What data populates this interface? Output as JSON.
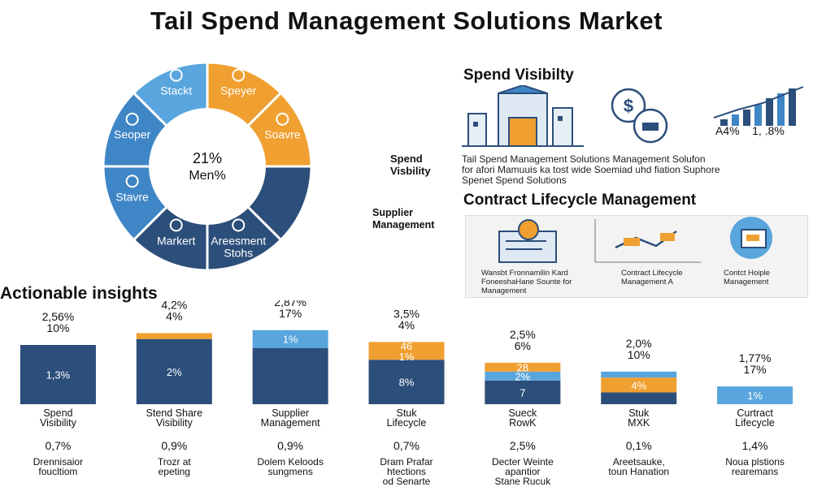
{
  "title": "Tail Spend Management Solutions Market",
  "pie": {
    "segments": [
      {
        "label": "Speyer",
        "color": "#f0a030"
      },
      {
        "label": "Soavre",
        "color": "#f0a030"
      },
      {
        "label": "",
        "color": "#2c4e7a"
      },
      {
        "label": "Areesment\nStohs",
        "color": "#2c4e7a"
      },
      {
        "label": "Markert",
        "color": "#2c4e7a"
      },
      {
        "label": "Stavre",
        "color": "#3f86c6"
      },
      {
        "label": "Seoper",
        "color": "#3f86c6"
      },
      {
        "label": "Stackt",
        "color": "#58a6dd"
      }
    ],
    "center_value": "21%",
    "center_label": "Men%",
    "callout_spend": "Spend\nVisbility",
    "callout_supplier": "Supplier\nManagement"
  },
  "spend_visibility": {
    "title": "Spend Visibilty",
    "chart_label": "A4%    1, .8%",
    "paragraph": "Tail Spend Management Solutions Management Solufon\nfor afori Mamuuis ka tost wide Soemiad uhd fiation Suphore\nSpenet Spend Solutions"
  },
  "contract": {
    "title": "Contract Lifecycle Management",
    "captions": [
      "Wansbt Fronnamilin Kard\nFoneeshaHane Sounte for\nManagement",
      "Contract Lifecycle\nManagement A",
      "Contct Hoiple\nManagement"
    ]
  },
  "insights_title": "Actionable insights",
  "icons": [
    "chart-icon",
    "envelope-icon",
    "building-icon",
    "globe-icon",
    "gear-icon",
    "dollar-icon",
    "growth-bars-icon",
    "document-icon",
    "handshake-icon",
    "tablet-icon"
  ],
  "chart_data": {
    "type": "bar",
    "stacked": true,
    "categories": [
      "Spend\nVisibility",
      "Stend Share\nVisibility",
      "Supplier\nManagement",
      "Stuk\nLifecycle",
      "Sueck\nRowK",
      "Stuk\nMXK",
      "Curtract\nLifecycle"
    ],
    "top_labels": [
      "2,56%\n10%",
      "4,2%\n4%",
      "2,87%\n17%",
      "3,5%\n4%",
      "2,5%\n6%",
      "2,0%\n10%",
      "1,77%\n17%"
    ],
    "series": [
      {
        "color": "#2c4e7a",
        "values": [
          10,
          11,
          9.5,
          7.5,
          4,
          2,
          0
        ],
        "labels": [
          "1,3%",
          "2%",
          "",
          "8%",
          "7",
          "",
          ""
        ]
      },
      {
        "color": "#58a6dd",
        "values": [
          0,
          0,
          3,
          0,
          1.5,
          0,
          3
        ],
        "labels": [
          "",
          "",
          "1%",
          "",
          "2%",
          "",
          "1%"
        ]
      },
      {
        "color": "#f0a030",
        "values": [
          0,
          1,
          0,
          3,
          1.5,
          2.5,
          0
        ],
        "labels": [
          "",
          "",
          "",
          "46\n1%",
          "28",
          "4%",
          ""
        ]
      },
      {
        "color": "#58a6dd",
        "values": [
          0,
          0,
          0,
          0,
          0,
          1,
          0
        ],
        "labels": [
          "",
          "",
          "",
          "",
          "",
          "",
          ""
        ]
      }
    ],
    "bottom_percents": [
      "0,7%",
      "0,9%",
      "0,9%",
      "0,7%",
      "2,5%",
      "0,1%",
      "1,4%"
    ],
    "bottom_notes": [
      "Drennisaior\nfoucltiom",
      "Trozr at\nepeting",
      "Dolem Keloods\nsungmens",
      "Dram Prafar\nhtections\nod Senarte",
      "Decter Weinte\napantior\nStane Rucuk",
      "Areetsauke,\ntoun Hanation",
      "Noua plstions\nrearemans"
    ]
  }
}
